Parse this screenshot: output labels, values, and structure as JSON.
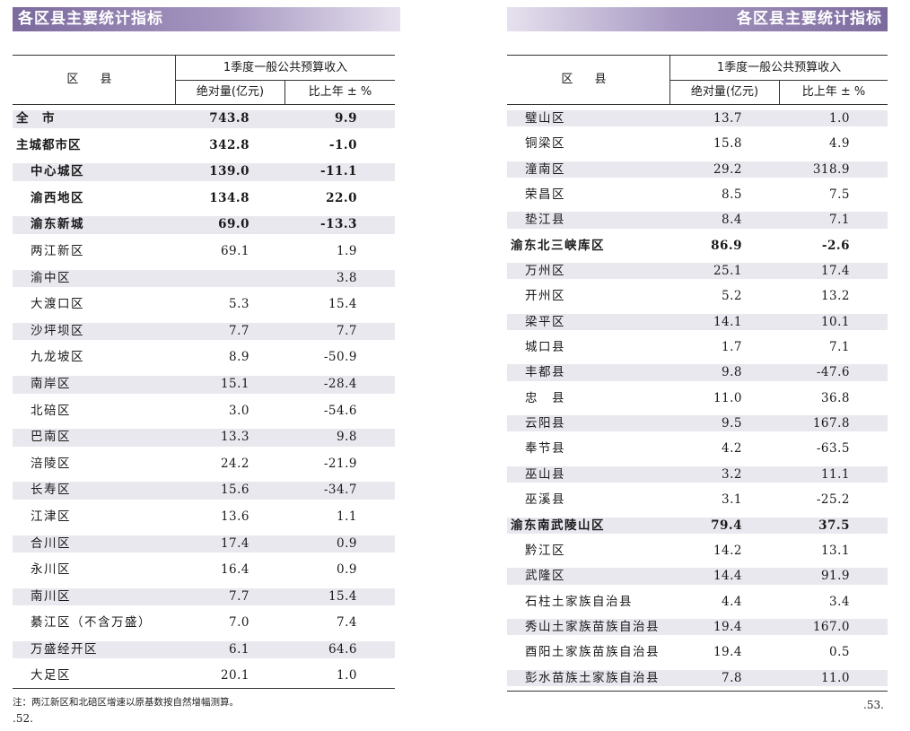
{
  "left": {
    "banner": "各区县主要统计指标",
    "header": {
      "region": "区 县",
      "group": "1季度一般公共预算收入",
      "abs": "绝对量(亿元)",
      "yoy": "比上年 ± %"
    },
    "rows": [
      {
        "name": "全　市",
        "abs": "743.8",
        "yoy": "9.9",
        "level": 1,
        "shade": true
      },
      {
        "name": "主城都市区",
        "abs": "342.8",
        "yoy": "-1.0",
        "level": 1,
        "shade": false
      },
      {
        "name": "中心城区",
        "abs": "139.0",
        "yoy": "-11.1",
        "level": 2,
        "shade": true
      },
      {
        "name": "渝西地区",
        "abs": "134.8",
        "yoy": "22.0",
        "level": 2,
        "shade": false
      },
      {
        "name": "渝东新城",
        "abs": "69.0",
        "yoy": "-13.3",
        "level": 2,
        "shade": true
      },
      {
        "name": "两江新区",
        "abs": "69.1",
        "yoy": "1.9",
        "level": 3,
        "shade": false
      },
      {
        "name": "渝中区",
        "abs": "",
        "yoy": "3.8",
        "level": 3,
        "shade": true
      },
      {
        "name": "大渡口区",
        "abs": "5.3",
        "yoy": "15.4",
        "level": 3,
        "shade": false
      },
      {
        "name": "沙坪坝区",
        "abs": "7.7",
        "yoy": "7.7",
        "level": 3,
        "shade": true
      },
      {
        "name": "九龙坡区",
        "abs": "8.9",
        "yoy": "-50.9",
        "level": 3,
        "shade": false
      },
      {
        "name": "南岸区",
        "abs": "15.1",
        "yoy": "-28.4",
        "level": 3,
        "shade": true
      },
      {
        "name": "北碚区",
        "abs": "3.0",
        "yoy": "-54.6",
        "level": 3,
        "shade": false
      },
      {
        "name": "巴南区",
        "abs": "13.3",
        "yoy": "9.8",
        "level": 3,
        "shade": true
      },
      {
        "name": "涪陵区",
        "abs": "24.2",
        "yoy": "-21.9",
        "level": 3,
        "shade": false
      },
      {
        "name": "长寿区",
        "abs": "15.6",
        "yoy": "-34.7",
        "level": 3,
        "shade": true
      },
      {
        "name": "江津区",
        "abs": "13.6",
        "yoy": "1.1",
        "level": 3,
        "shade": false
      },
      {
        "name": "合川区",
        "abs": "17.4",
        "yoy": "0.9",
        "level": 3,
        "shade": true
      },
      {
        "name": "永川区",
        "abs": "16.4",
        "yoy": "0.9",
        "level": 3,
        "shade": false
      },
      {
        "name": "南川区",
        "abs": "7.7",
        "yoy": "15.4",
        "level": 3,
        "shade": true
      },
      {
        "name": "綦江区（不含万盛）",
        "abs": "7.0",
        "yoy": "7.4",
        "level": 3,
        "shade": false
      },
      {
        "name": "万盛经开区",
        "abs": "6.1",
        "yoy": "64.6",
        "level": 3,
        "shade": true
      },
      {
        "name": "大足区",
        "abs": "20.1",
        "yoy": "1.0",
        "level": 3,
        "shade": false
      }
    ],
    "note": "注：两江新区和北碚区增速以原基数按自然增幅测算。",
    "page_number": ".52."
  },
  "right": {
    "banner": "各区县主要统计指标",
    "header": {
      "region": "区 县",
      "group": "1季度一般公共预算收入",
      "abs": "绝对量(亿元)",
      "yoy": "比上年 ± %"
    },
    "rows": [
      {
        "name": "璧山区",
        "abs": "13.7",
        "yoy": "1.0",
        "level": 3,
        "shade": true
      },
      {
        "name": "铜梁区",
        "abs": "15.8",
        "yoy": "4.9",
        "level": 3,
        "shade": false
      },
      {
        "name": "潼南区",
        "abs": "29.2",
        "yoy": "318.9",
        "level": 3,
        "shade": true
      },
      {
        "name": "荣昌区",
        "abs": "8.5",
        "yoy": "7.5",
        "level": 3,
        "shade": false
      },
      {
        "name": "垫江县",
        "abs": "8.4",
        "yoy": "7.1",
        "level": 3,
        "shade": true
      },
      {
        "name": "渝东北三峡库区",
        "abs": "86.9",
        "yoy": "-2.6",
        "level": 1,
        "shade": false
      },
      {
        "name": "万州区",
        "abs": "25.1",
        "yoy": "17.4",
        "level": 3,
        "shade": true
      },
      {
        "name": "开州区",
        "abs": "5.2",
        "yoy": "13.2",
        "level": 3,
        "shade": false
      },
      {
        "name": "梁平区",
        "abs": "14.1",
        "yoy": "10.1",
        "level": 3,
        "shade": true
      },
      {
        "name": "城口县",
        "abs": "1.7",
        "yoy": "7.1",
        "level": 3,
        "shade": false
      },
      {
        "name": "丰都县",
        "abs": "9.8",
        "yoy": "-47.6",
        "level": 3,
        "shade": true
      },
      {
        "name": "忠　县",
        "abs": "11.0",
        "yoy": "36.8",
        "level": 3,
        "shade": false
      },
      {
        "name": "云阳县",
        "abs": "9.5",
        "yoy": "167.8",
        "level": 3,
        "shade": true
      },
      {
        "name": "奉节县",
        "abs": "4.2",
        "yoy": "-63.5",
        "level": 3,
        "shade": false
      },
      {
        "name": "巫山县",
        "abs": "3.2",
        "yoy": "11.1",
        "level": 3,
        "shade": true
      },
      {
        "name": "巫溪县",
        "abs": "3.1",
        "yoy": "-25.2",
        "level": 3,
        "shade": false
      },
      {
        "name": "渝东南武陵山区",
        "abs": "79.4",
        "yoy": "37.5",
        "level": 1,
        "shade": true
      },
      {
        "name": "黔江区",
        "abs": "14.2",
        "yoy": "13.1",
        "level": 3,
        "shade": false
      },
      {
        "name": "武隆区",
        "abs": "14.4",
        "yoy": "91.9",
        "level": 3,
        "shade": true
      },
      {
        "name": "石柱土家族自治县",
        "abs": "4.4",
        "yoy": "3.4",
        "level": 3,
        "shade": false
      },
      {
        "name": "秀山土家族苗族自治县",
        "abs": "19.4",
        "yoy": "167.0",
        "level": 3,
        "shade": true
      },
      {
        "name": "酉阳土家族苗族自治县",
        "abs": "19.4",
        "yoy": "0.5",
        "level": 3,
        "shade": false
      },
      {
        "name": "彭水苗族土家族自治县",
        "abs": "7.8",
        "yoy": "11.0",
        "level": 3,
        "shade": true
      }
    ],
    "page_number": ".53."
  }
}
